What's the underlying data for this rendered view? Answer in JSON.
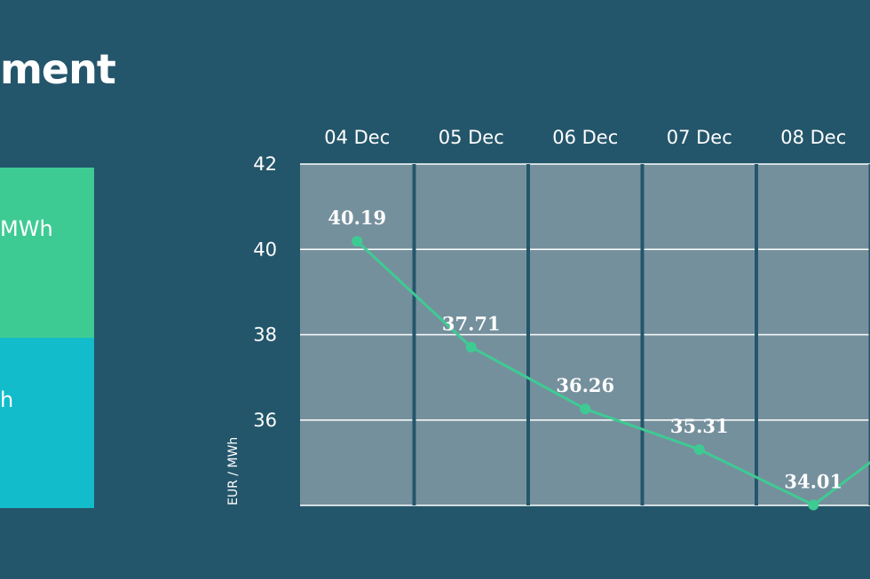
{
  "header": {
    "title": "ment"
  },
  "panels": [
    {
      "text": "MWh",
      "color": "#3ecb93"
    },
    {
      "text": "h",
      "color": "#12bccb"
    }
  ],
  "colors": {
    "background": "#24566b",
    "plot_area": "#75909d",
    "line": "#3ecb93",
    "text": "#ffffff"
  },
  "chart_data": {
    "type": "line",
    "title": "",
    "xlabel": "",
    "ylabel": "EUR / MWh",
    "categories": [
      "04 Dec",
      "05 Dec",
      "06 Dec",
      "07 Dec",
      "08 Dec"
    ],
    "series": [
      {
        "values": [
          40.19,
          37.71,
          36.26,
          35.31,
          34.01
        ]
      }
    ],
    "data_labels": [
      "40.19",
      "37.71",
      "36.26",
      "35.31",
      "34.01"
    ],
    "y_ticks": [
      42,
      40,
      38,
      36
    ],
    "ylim": [
      34,
      42
    ],
    "grid": true,
    "legend": "none"
  }
}
